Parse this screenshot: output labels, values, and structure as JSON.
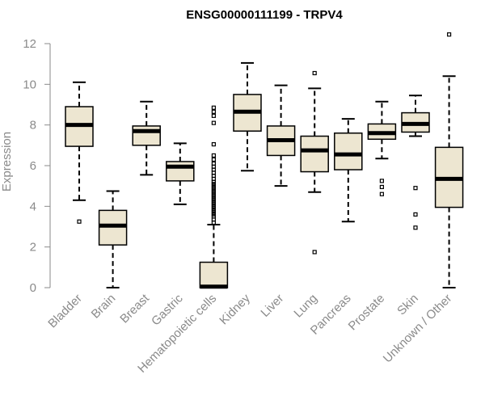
{
  "chart_data": {
    "type": "box",
    "title": "ENSG00000111199 - TRPV4",
    "xlabel": "",
    "ylabel": "Expression",
    "ylim": [
      0,
      12.4
    ],
    "yticks": [
      0,
      2,
      4,
      6,
      8,
      10,
      12
    ],
    "box_fill": "#ede6d1",
    "categories": [
      "Bladder",
      "Brain",
      "Breast",
      "Gastric",
      "Hematopoietic cells",
      "Kidney",
      "Liver",
      "Lung",
      "Pancreas",
      "Prostate",
      "Skin",
      "Unknown / Other"
    ],
    "boxes": [
      {
        "category": "Bladder",
        "whisker_low": 4.3,
        "q1": 6.95,
        "median": 8.0,
        "q3": 8.9,
        "whisker_high": 10.1,
        "outliers": [
          3.25
        ]
      },
      {
        "category": "Brain",
        "whisker_low": 0.0,
        "q1": 2.1,
        "median": 3.05,
        "q3": 3.8,
        "whisker_high": 4.75,
        "outliers": []
      },
      {
        "category": "Breast",
        "whisker_low": 5.55,
        "q1": 7.0,
        "median": 7.7,
        "q3": 7.95,
        "whisker_high": 9.15,
        "outliers": []
      },
      {
        "category": "Gastric",
        "whisker_low": 4.1,
        "q1": 5.25,
        "median": 5.95,
        "q3": 6.2,
        "whisker_high": 7.1,
        "outliers": []
      },
      {
        "category": "Hematopoietic cells",
        "whisker_low": 0.0,
        "q1": 0.0,
        "median": 0.05,
        "q3": 1.25,
        "whisker_high": 3.1,
        "outliers": [
          3.2,
          3.35,
          3.5,
          3.6,
          3.7,
          3.8,
          3.9,
          4.0,
          4.1,
          4.2,
          4.3,
          4.4,
          4.5,
          4.6,
          4.7,
          4.8,
          4.9,
          5.0,
          5.1,
          5.2,
          5.35,
          5.5,
          5.65,
          5.8,
          5.95,
          6.1,
          6.3,
          6.5,
          7.05,
          8.1,
          8.45,
          8.65,
          8.85
        ]
      },
      {
        "category": "Kidney",
        "whisker_low": 5.75,
        "q1": 7.7,
        "median": 8.65,
        "q3": 9.5,
        "whisker_high": 11.05,
        "outliers": []
      },
      {
        "category": "Liver",
        "whisker_low": 5.0,
        "q1": 6.5,
        "median": 7.25,
        "q3": 7.95,
        "whisker_high": 9.95,
        "outliers": []
      },
      {
        "category": "Lung",
        "whisker_low": 4.7,
        "q1": 5.7,
        "median": 6.75,
        "q3": 7.45,
        "whisker_high": 9.8,
        "outliers": [
          1.75,
          10.55
        ]
      },
      {
        "category": "Pancreas",
        "whisker_low": 3.25,
        "q1": 5.8,
        "median": 6.55,
        "q3": 7.6,
        "whisker_high": 8.3,
        "outliers": []
      },
      {
        "category": "Prostate",
        "whisker_low": 6.35,
        "q1": 7.3,
        "median": 7.6,
        "q3": 8.05,
        "whisker_high": 9.15,
        "outliers": [
          4.6,
          4.95,
          5.25
        ]
      },
      {
        "category": "Skin",
        "whisker_low": 7.45,
        "q1": 7.65,
        "median": 8.05,
        "q3": 8.6,
        "whisker_high": 9.45,
        "outliers": [
          2.95,
          3.6,
          4.9
        ]
      },
      {
        "category": "Unknown / Other",
        "whisker_low": 0.0,
        "q1": 3.95,
        "median": 5.35,
        "q3": 6.9,
        "whisker_high": 10.4,
        "outliers": [
          12.45
        ]
      }
    ]
  }
}
